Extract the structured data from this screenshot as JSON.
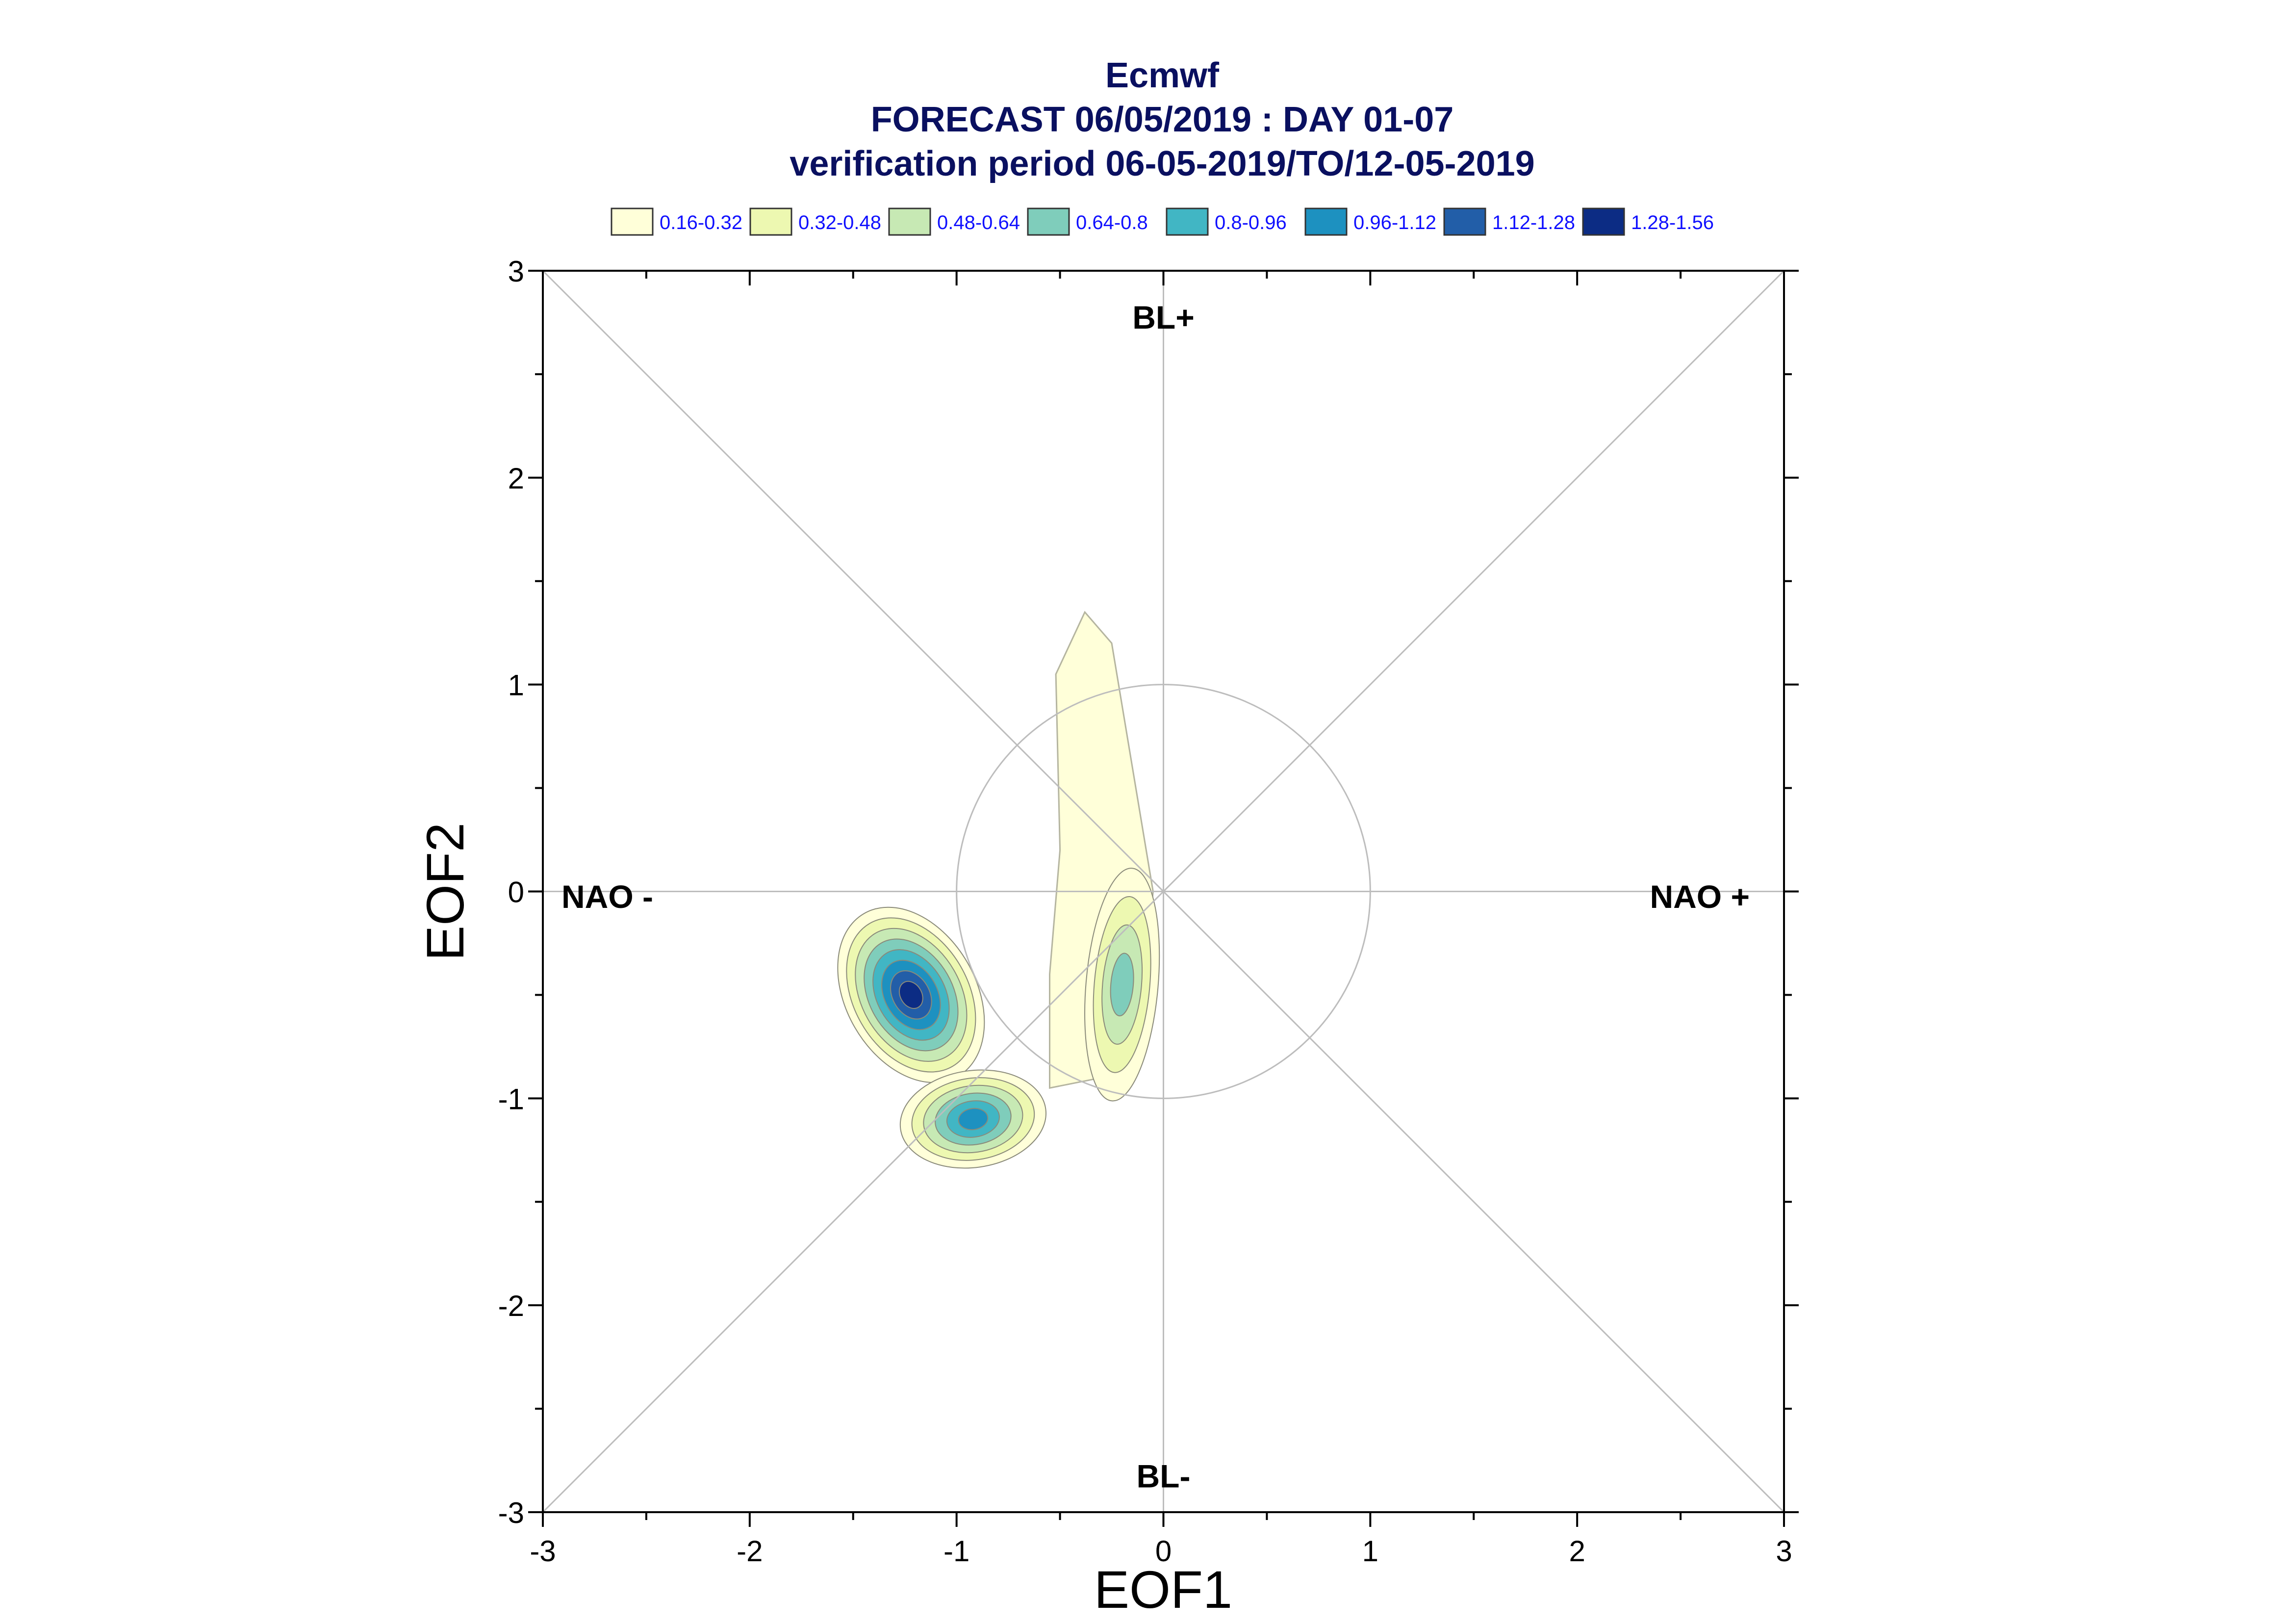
{
  "chart_data": {
    "type": "contour",
    "title": "Ecmwf",
    "subtitle": "FORECAST 06/05/2019 : DAY 01-07",
    "subtitle2": "verification period 06-05-2019/TO/12-05-2019",
    "xlabel": "EOF1",
    "ylabel": "EOF2",
    "xlim": [
      -3,
      3
    ],
    "ylim": [
      -3,
      3
    ],
    "xticks": [
      "-3",
      "-2",
      "-1",
      "0",
      "1",
      "2",
      "3"
    ],
    "yticks": [
      "-3",
      "-2",
      "-1",
      "0",
      "1",
      "2",
      "3"
    ],
    "reference_circle_radius": 1,
    "regime_labels": [
      {
        "text": "BL+",
        "x": 0,
        "y": 2.72
      },
      {
        "text": "BL-",
        "x": 0,
        "y": -2.88
      },
      {
        "text": "NAO -",
        "x": -2.6,
        "y": -0.08
      },
      {
        "text": "NAO +",
        "x": 2.55,
        "y": -0.08
      }
    ],
    "legend_placement": "top",
    "levels": [
      {
        "label": "0.16-0.32",
        "color": "#ffffd9"
      },
      {
        "label": "0.32-0.48",
        "color": "#edf8b1"
      },
      {
        "label": "0.48-0.64",
        "color": "#c7e9b4"
      },
      {
        "label": "0.64-0.8",
        "color": "#7fcdbb"
      },
      {
        "label": "0.8-0.96",
        "color": "#41b6c4"
      },
      {
        "label": "0.96-1.12",
        "color": "#1d91c0"
      },
      {
        "label": "1.12-1.28",
        "color": "#225ea8"
      },
      {
        "label": "1.28-1.56",
        "color": "#0c2c84"
      }
    ],
    "density_blobs": [
      {
        "x": -1.22,
        "y": -0.5,
        "peak": 1.5,
        "max_level": 8
      },
      {
        "x": -0.9,
        "y": -1.1,
        "peak": 1.0,
        "max_level": 6
      },
      {
        "x": -0.2,
        "y": -0.45,
        "peak": 0.75,
        "max_level": 4
      },
      {
        "x": -0.4,
        "y": 0.8,
        "peak": 0.3,
        "max_level": 1
      }
    ]
  }
}
